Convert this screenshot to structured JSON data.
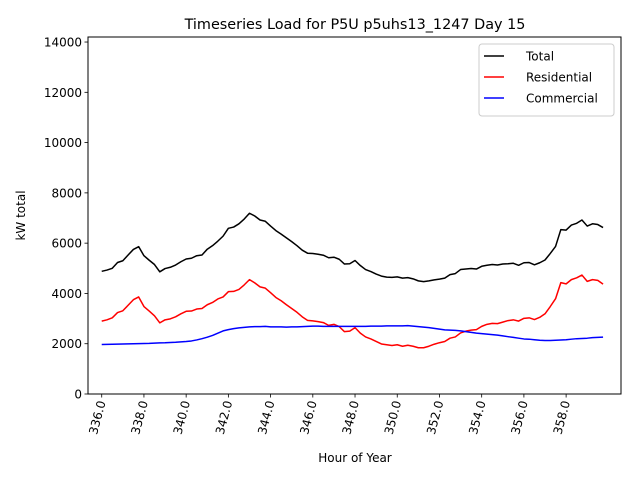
{
  "chart_data": {
    "type": "line",
    "title": "Timeseries Load for P5U p5uhs13_1247  Day 15",
    "xlabel": "Hour of Year",
    "ylabel": "kW total",
    "xlim": [
      335.35,
      360.6
    ],
    "ylim": [
      0,
      14200
    ],
    "xticks": [
      336,
      338,
      340,
      342,
      344,
      346,
      348,
      350,
      352,
      354,
      356,
      358
    ],
    "xtick_labels": [
      "336.0",
      "338.0",
      "340.0",
      "342.0",
      "344.0",
      "346.0",
      "348.0",
      "350.0",
      "352.0",
      "354.0",
      "356.0",
      "358.0"
    ],
    "yticks": [
      0,
      2000,
      4000,
      6000,
      8000,
      10000,
      12000,
      14000
    ],
    "ytick_labels": [
      "0",
      "2000",
      "4000",
      "6000",
      "8000",
      "10000",
      "12000",
      "14000"
    ],
    "grid": false,
    "legend_position": "upper right",
    "x": [
      336.0,
      336.25,
      336.5,
      336.75,
      337.0,
      337.25,
      337.5,
      337.75,
      338.0,
      338.25,
      338.5,
      338.75,
      339.0,
      339.25,
      339.5,
      339.75,
      340.0,
      340.25,
      340.5,
      340.75,
      341.0,
      341.25,
      341.5,
      341.75,
      342.0,
      342.25,
      342.5,
      342.75,
      343.0,
      343.25,
      343.5,
      343.75,
      344.0,
      344.25,
      344.5,
      344.75,
      345.0,
      345.25,
      345.5,
      345.75,
      346.0,
      346.25,
      346.5,
      346.75,
      347.0,
      347.25,
      347.5,
      347.75,
      348.0,
      348.25,
      348.5,
      348.75,
      349.0,
      349.25,
      349.5,
      349.75,
      350.0,
      350.25,
      350.5,
      350.75,
      351.0,
      351.25,
      351.5,
      351.75,
      352.0,
      352.25,
      352.5,
      352.75,
      353.0,
      353.25,
      353.5,
      353.75,
      354.0,
      354.25,
      354.5,
      354.75,
      355.0,
      355.25,
      355.5,
      355.75,
      356.0,
      356.25,
      356.5,
      356.75,
      357.0,
      357.25,
      357.5,
      357.75,
      358.0,
      358.25,
      358.5,
      358.75,
      359.0,
      359.25,
      359.5,
      359.75
    ],
    "series": [
      {
        "name": "Total",
        "color": "#000000",
        "values": [
          4880,
          4930,
          5000,
          5230,
          5300,
          5530,
          5750,
          5860,
          5500,
          5320,
          5150,
          4860,
          4990,
          5040,
          5130,
          5260,
          5370,
          5400,
          5500,
          5530,
          5760,
          5900,
          6080,
          6280,
          6590,
          6640,
          6770,
          6960,
          7190,
          7080,
          6920,
          6870,
          6680,
          6500,
          6360,
          6210,
          6060,
          5900,
          5720,
          5600,
          5590,
          5560,
          5520,
          5420,
          5440,
          5360,
          5170,
          5180,
          5310,
          5110,
          4950,
          4870,
          4770,
          4690,
          4650,
          4640,
          4660,
          4610,
          4630,
          4580,
          4500,
          4470,
          4500,
          4540,
          4570,
          4610,
          4750,
          4790,
          4950,
          4970,
          4990,
          4970,
          5080,
          5120,
          5150,
          5130,
          5170,
          5180,
          5200,
          5120,
          5220,
          5230,
          5140,
          5220,
          5330,
          5590,
          5870,
          6540,
          6520,
          6720,
          6790,
          6920,
          6680,
          6770,
          6740,
          6620
        ]
      },
      {
        "name": "Residential",
        "color": "#ff0000",
        "values": [
          2900,
          2950,
          3030,
          3240,
          3310,
          3530,
          3750,
          3860,
          3480,
          3300,
          3110,
          2830,
          2950,
          2990,
          3070,
          3190,
          3290,
          3300,
          3380,
          3400,
          3550,
          3640,
          3780,
          3860,
          4070,
          4080,
          4160,
          4340,
          4550,
          4420,
          4260,
          4210,
          4030,
          3840,
          3710,
          3550,
          3400,
          3250,
          3070,
          2930,
          2910,
          2880,
          2840,
          2730,
          2770,
          2680,
          2480,
          2500,
          2640,
          2420,
          2270,
          2190,
          2090,
          1990,
          1960,
          1930,
          1960,
          1900,
          1940,
          1900,
          1840,
          1840,
          1900,
          1980,
          2040,
          2090,
          2220,
          2270,
          2430,
          2500,
          2540,
          2560,
          2690,
          2770,
          2810,
          2800,
          2860,
          2920,
          2950,
          2900,
          3010,
          3030,
          2960,
          3050,
          3190,
          3480,
          3790,
          4430,
          4380,
          4550,
          4620,
          4730,
          4480,
          4550,
          4520,
          4370
        ]
      },
      {
        "name": "Commercial",
        "color": "#0000ff",
        "values": [
          1970,
          1975,
          1980,
          1985,
          1990,
          1995,
          2000,
          2005,
          2010,
          2015,
          2025,
          2035,
          2040,
          2050,
          2060,
          2075,
          2090,
          2110,
          2150,
          2200,
          2260,
          2330,
          2420,
          2510,
          2560,
          2600,
          2630,
          2650,
          2670,
          2680,
          2680,
          2690,
          2670,
          2670,
          2670,
          2660,
          2670,
          2670,
          2680,
          2690,
          2700,
          2700,
          2690,
          2690,
          2690,
          2690,
          2690,
          2690,
          2690,
          2690,
          2690,
          2700,
          2700,
          2700,
          2710,
          2710,
          2710,
          2710,
          2720,
          2700,
          2680,
          2660,
          2640,
          2610,
          2580,
          2550,
          2540,
          2530,
          2510,
          2480,
          2450,
          2420,
          2400,
          2380,
          2360,
          2340,
          2310,
          2280,
          2250,
          2220,
          2190,
          2180,
          2160,
          2140,
          2130,
          2130,
          2140,
          2150,
          2160,
          2180,
          2200,
          2210,
          2220,
          2240,
          2250,
          2260
        ]
      }
    ]
  }
}
